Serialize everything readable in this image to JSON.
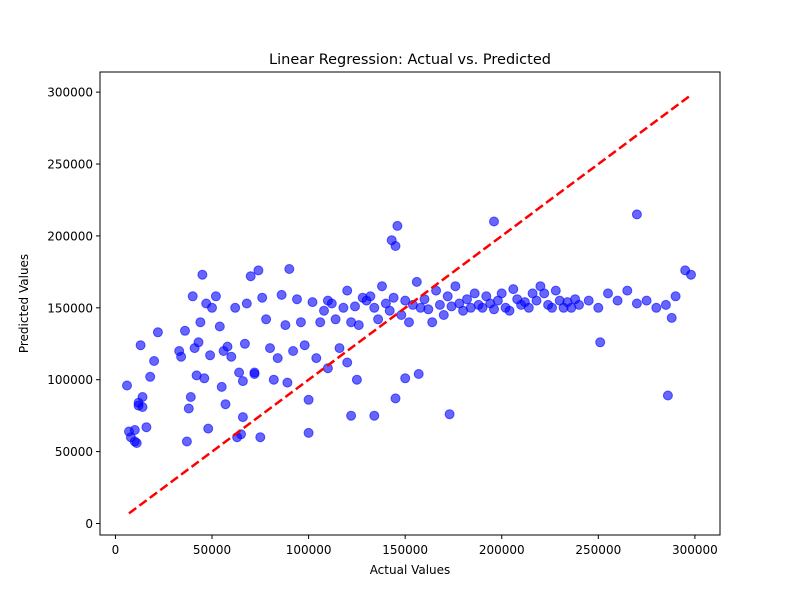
{
  "chart_data": {
    "type": "scatter",
    "title": "Linear Regression: Actual vs. Predicted",
    "xlabel": "Actual Values",
    "ylabel": "Predicted Values",
    "xlim": [
      -8000,
      313000
    ],
    "ylim": [
      -8000,
      314000
    ],
    "xticks": [
      0,
      50000,
      100000,
      150000,
      200000,
      250000,
      300000
    ],
    "yticks": [
      0,
      50000,
      100000,
      150000,
      200000,
      250000,
      300000
    ],
    "xtick_labels": [
      "0",
      "50000",
      "100000",
      "150000",
      "200000",
      "250000",
      "300000"
    ],
    "ytick_labels": [
      "0",
      "50000",
      "100000",
      "150000",
      "200000",
      "250000",
      "300000"
    ],
    "grid": false,
    "point_color": "#0000ff",
    "point_opacity": 0.6,
    "reference_line": {
      "style": "dashed",
      "color": "#ff0000",
      "x": [
        7000,
        298000
      ],
      "y": [
        7000,
        298000
      ]
    },
    "points": {
      "x": [
        7000,
        8000,
        10000,
        12000,
        14000,
        16000,
        6000,
        10000,
        11000,
        13000,
        18000,
        20000,
        22000,
        12000,
        14000,
        33000,
        34000,
        36000,
        38000,
        40000,
        37000,
        39000,
        42000,
        44000,
        41000,
        43000,
        45000,
        47000,
        49000,
        46000,
        48000,
        50000,
        52000,
        54000,
        56000,
        58000,
        55000,
        57000,
        60000,
        62000,
        64000,
        66000,
        68000,
        70000,
        65000,
        67000,
        72000,
        74000,
        76000,
        78000,
        80000,
        82000,
        84000,
        86000,
        88000,
        90000,
        92000,
        94000,
        96000,
        98000,
        100000,
        102000,
        104000,
        106000,
        108000,
        110000,
        112000,
        114000,
        116000,
        118000,
        120000,
        122000,
        124000,
        126000,
        128000,
        130000,
        132000,
        134000,
        136000,
        138000,
        140000,
        142000,
        144000,
        146000,
        148000,
        150000,
        152000,
        154000,
        156000,
        158000,
        160000,
        162000,
        164000,
        166000,
        168000,
        170000,
        172000,
        174000,
        176000,
        178000,
        180000,
        182000,
        184000,
        186000,
        188000,
        190000,
        192000,
        194000,
        196000,
        198000,
        200000,
        202000,
        204000,
        206000,
        208000,
        210000,
        212000,
        214000,
        216000,
        218000,
        220000,
        222000,
        224000,
        226000,
        228000,
        230000,
        232000,
        234000,
        236000,
        238000,
        240000,
        245000,
        250000,
        255000,
        260000,
        265000,
        270000,
        275000,
        280000,
        285000,
        290000,
        295000,
        298000,
        286000,
        288000,
        270000,
        251000,
        145000,
        196000,
        143000,
        89000,
        72000,
        66000,
        75000,
        100000,
        122000,
        125000,
        134000,
        157000,
        173000,
        145000,
        150000,
        120000,
        110000,
        63000
      ],
      "y": [
        64000,
        60000,
        57000,
        82000,
        88000,
        67000,
        96000,
        65000,
        56000,
        124000,
        102000,
        113000,
        133000,
        84000,
        81000,
        120000,
        116000,
        134000,
        80000,
        158000,
        57000,
        88000,
        103000,
        140000,
        122000,
        126000,
        173000,
        153000,
        117000,
        101000,
        66000,
        150000,
        158000,
        137000,
        120000,
        123000,
        95000,
        83000,
        116000,
        150000,
        105000,
        99000,
        153000,
        172000,
        62000,
        125000,
        104000,
        176000,
        157000,
        142000,
        122000,
        100000,
        115000,
        159000,
        138000,
        177000,
        120000,
        156000,
        140000,
        124000,
        63000,
        154000,
        115000,
        140000,
        148000,
        155000,
        153000,
        142000,
        122000,
        150000,
        162000,
        140000,
        151000,
        138000,
        157000,
        155000,
        158000,
        150000,
        142000,
        165000,
        153000,
        148000,
        157000,
        207000,
        145000,
        155000,
        140000,
        152000,
        168000,
        150000,
        156000,
        149000,
        140000,
        162000,
        152000,
        145000,
        158000,
        151000,
        165000,
        153000,
        148000,
        156000,
        150000,
        160000,
        152000,
        150000,
        158000,
        153000,
        149000,
        155000,
        160000,
        150000,
        148000,
        163000,
        156000,
        152000,
        154000,
        150000,
        160000,
        155000,
        165000,
        160000,
        152000,
        150000,
        162000,
        155000,
        150000,
        154000,
        150000,
        156000,
        152000,
        155000,
        150000,
        160000,
        155000,
        162000,
        153000,
        155000,
        150000,
        152000,
        158000,
        176000,
        173000,
        89000,
        143000,
        215000,
        126000,
        193000,
        210000,
        197000,
        98000,
        105000,
        74000,
        60000,
        86000,
        75000,
        100000,
        75000,
        104000,
        76000,
        87000,
        101000,
        112000,
        108000,
        60000
      ]
    }
  }
}
